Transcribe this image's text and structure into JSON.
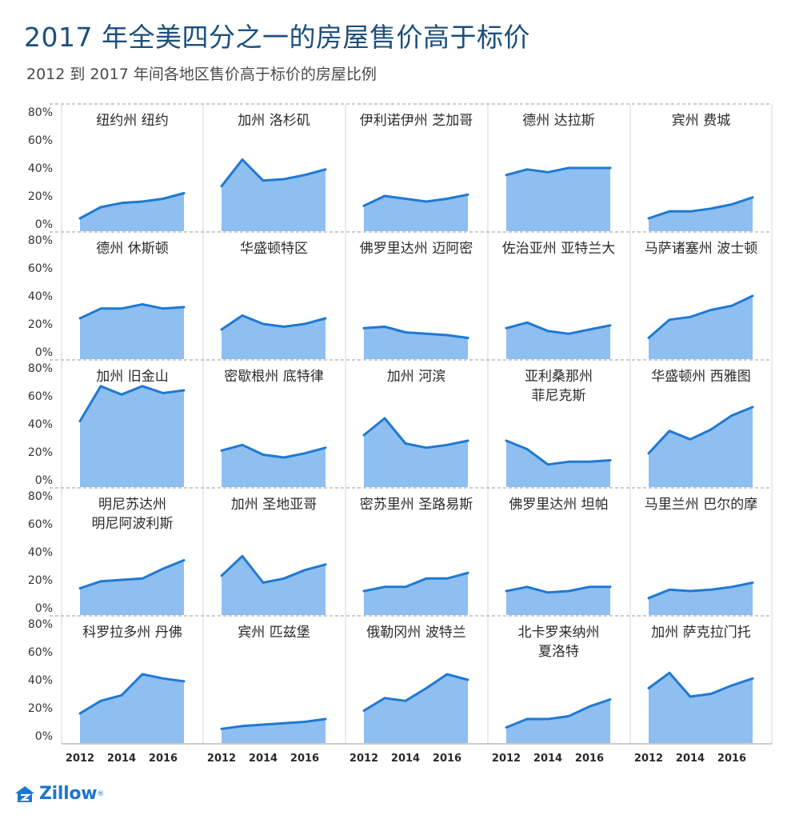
{
  "header": {
    "title": "2017 年全美四分之一的房屋售价高于标价",
    "subtitle": "2012 到 2017 年间各地区售价高于标价的房屋比例"
  },
  "brand": {
    "name": "Zillow",
    "reg": "®",
    "accent_color": "#1c75d2"
  },
  "colors": {
    "line": "#1f79d3",
    "fill": "#8ebff0",
    "title": "#1c4f7c",
    "grid": "#d7d7d7"
  },
  "chart_data": {
    "type": "area",
    "title": "2017 年全美四分之一的房屋售价高于标价",
    "subtitle": "2012 到 2017 年间各地区售价高于标价的房屋比例",
    "x": [
      2012,
      2013,
      2014,
      2015,
      2016,
      2017
    ],
    "x_ticks": [
      "2012",
      "2014",
      "2016"
    ],
    "y_ticks": [
      "0%",
      "20%",
      "40%",
      "60%",
      "80%"
    ],
    "ylim": [
      0,
      80
    ],
    "grid": true,
    "panels": [
      {
        "name": [
          "纽约州 纽约"
        ],
        "values": [
          4,
          12,
          15,
          16,
          18,
          22
        ]
      },
      {
        "name": [
          "加州 洛杉矶"
        ],
        "values": [
          27,
          46,
          31,
          32,
          35,
          39
        ]
      },
      {
        "name": [
          "伊利诺伊州 芝加哥"
        ],
        "values": [
          13,
          20,
          18,
          16,
          18,
          21
        ]
      },
      {
        "name": [
          "德州 达拉斯"
        ],
        "values": [
          35,
          39,
          37,
          40,
          40,
          40
        ]
      },
      {
        "name": [
          "宾州 费城"
        ],
        "values": [
          4,
          9,
          9,
          11,
          14,
          19
        ]
      },
      {
        "name": [
          "德州 休斯顿"
        ],
        "values": [
          24,
          31,
          31,
          34,
          31,
          32
        ]
      },
      {
        "name": [
          "华盛顿特区"
        ],
        "values": [
          16,
          26,
          20,
          18,
          20,
          24
        ]
      },
      {
        "name": [
          "佛罗里达州 迈阿密"
        ],
        "values": [
          17,
          18,
          14,
          13,
          12,
          10
        ]
      },
      {
        "name": [
          "佐治亚州 亚特兰大"
        ],
        "values": [
          17,
          21,
          15,
          13,
          16,
          19
        ]
      },
      {
        "name": [
          "马萨诸塞州 波士顿"
        ],
        "values": [
          10,
          23,
          25,
          30,
          33,
          40
        ]
      },
      {
        "name": [
          "加州 旧金山"
        ],
        "values": [
          42,
          67,
          61,
          67,
          62,
          64
        ]
      },
      {
        "name": [
          "密歇根州 底特律"
        ],
        "values": [
          21,
          25,
          18,
          16,
          19,
          23
        ]
      },
      {
        "name": [
          "加州 河滨"
        ],
        "values": [
          32,
          44,
          26,
          23,
          25,
          28
        ]
      },
      {
        "name": [
          "亚利桑那州",
          "菲尼克斯"
        ],
        "values": [
          28,
          22,
          11,
          13,
          13,
          14
        ]
      },
      {
        "name": [
          "华盛顿州 西雅图"
        ],
        "values": [
          19,
          35,
          29,
          36,
          46,
          52
        ]
      },
      {
        "name": [
          "明尼苏达州",
          "明尼阿波利斯"
        ],
        "values": [
          14,
          19,
          20,
          21,
          28,
          34
        ]
      },
      {
        "name": [
          "加州 圣地亚哥"
        ],
        "values": [
          23,
          37,
          18,
          21,
          27,
          31
        ]
      },
      {
        "name": [
          "密苏里州 圣路易斯"
        ],
        "values": [
          12,
          15,
          15,
          21,
          21,
          25
        ]
      },
      {
        "name": [
          "佛罗里达州 坦帕"
        ],
        "values": [
          12,
          15,
          11,
          12,
          15,
          15
        ]
      },
      {
        "name": [
          "马里兰州 巴尔的摩"
        ],
        "values": [
          7,
          13,
          12,
          13,
          15,
          18
        ]
      },
      {
        "name": [
          "科罗拉多州 丹佛"
        ],
        "values": [
          16,
          25,
          29,
          44,
          41,
          39
        ]
      },
      {
        "name": [
          "宾州 匹兹堡"
        ],
        "values": [
          5,
          7,
          8,
          9,
          10,
          12
        ]
      },
      {
        "name": [
          "俄勒冈州 波特兰"
        ],
        "values": [
          18,
          27,
          25,
          34,
          44,
          40
        ]
      },
      {
        "name": [
          "北卡罗来纳州",
          "夏洛特"
        ],
        "values": [
          6,
          12,
          12,
          14,
          21,
          26
        ]
      },
      {
        "name": [
          "加州 萨克拉门托"
        ],
        "values": [
          34,
          45,
          28,
          30,
          36,
          41
        ]
      }
    ]
  }
}
